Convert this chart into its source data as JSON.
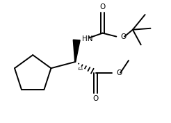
{
  "bg_color": "#ffffff",
  "line_color": "#000000",
  "lw": 1.4,
  "figsize": [
    2.46,
    1.77
  ],
  "dpi": 100,
  "xlim": [
    0,
    246
  ],
  "ylim": [
    0,
    177
  ]
}
